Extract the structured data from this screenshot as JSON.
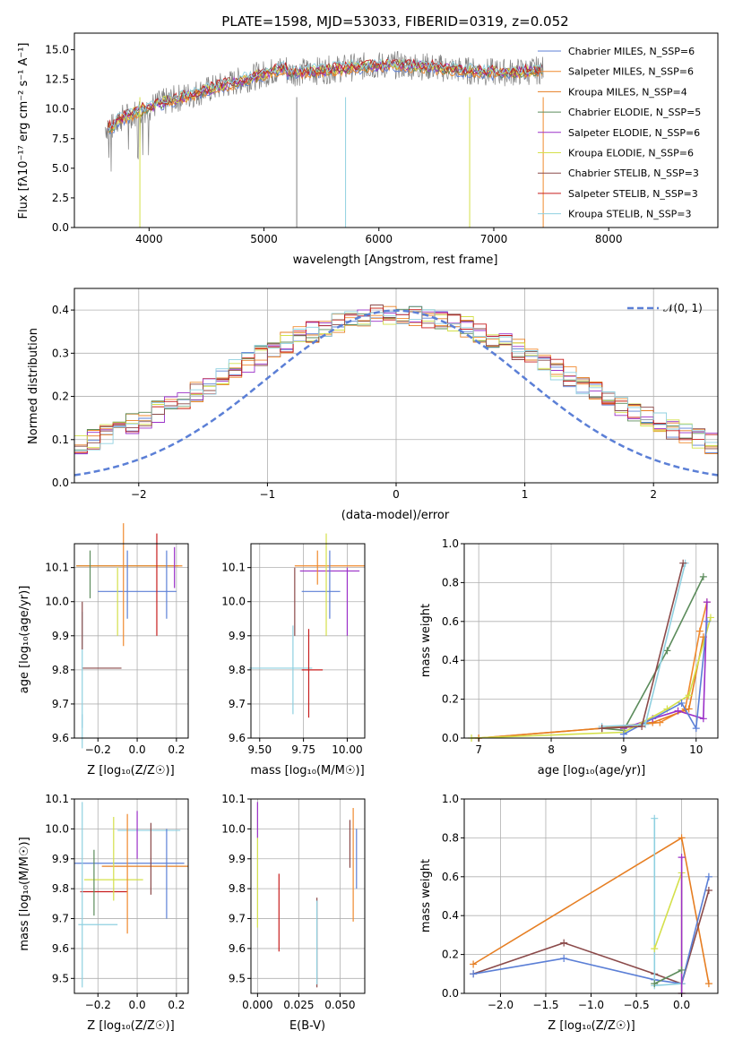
{
  "colors": [
    "#5b7fd6",
    "#f08a2e",
    "#e67e22",
    "#5c8c5c",
    "#9b30c8",
    "#d4e04a",
    "#8b4a4a",
    "#c81e1e",
    "#8fd0e0"
  ],
  "spectrum": {
    "title": "PLATE=1598, MJD=53033, FIBERID=0319, z=0.052",
    "xlabel": "wavelength [Angstrom, rest frame]",
    "ylabel": "Flux [fλ10⁻¹⁷ erg cm⁻² s⁻¹ A⁻¹]",
    "xticks": [
      "4000",
      "5000",
      "6000",
      "7000",
      "8000"
    ],
    "yticks": [
      "0.0",
      "2.5",
      "5.0",
      "7.5",
      "10.0",
      "12.5",
      "15.0"
    ],
    "legend": [
      "Chabrier MILES, N_SSP=6",
      "Salpeter MILES, N_SSP=6",
      "Kroupa MILES, N_SSP=4",
      "Chabrier ELODIE, N_SSP=5",
      "Salpeter ELODIE, N_SSP=6",
      "Kroupa ELODIE, N_SSP=6",
      "Chabrier STELIB, N_SSP=3",
      "Salpeter STELIB, N_SSP=3",
      "Kroupa STELIB, N_SSP=3"
    ]
  },
  "residuals": {
    "xlabel": "(data-model)/error",
    "ylabel": "Normed distribution",
    "xticks": [
      "−2",
      "−1",
      "0",
      "1",
      "2"
    ],
    "yticks": [
      "0.0",
      "0.1",
      "0.2",
      "0.3",
      "0.4"
    ],
    "legend_label": "𝒩(0, 1)"
  },
  "panels": {
    "z_age": {
      "xlabel": "Z [log₁₀(Z/Z☉)]",
      "ylabel": "age  [log₁₀(age/yr)]",
      "xticks": [
        "−0.2",
        "0.0",
        "0.2"
      ],
      "yticks": [
        "9.6",
        "9.7",
        "9.8",
        "9.9",
        "10.0",
        "10.1"
      ]
    },
    "mass_age": {
      "xlabel": "mass [log₁₀(M/M☉)]",
      "xticks": [
        "9.50",
        "9.75",
        "10.00"
      ],
      "yticks": [
        "9.6",
        "9.7",
        "9.8",
        "9.9",
        "10.0",
        "10.1"
      ]
    },
    "age_weight": {
      "xlabel": "age  [log₁₀(age/yr)]",
      "ylabel": "mass weight",
      "xticks": [
        "7",
        "8",
        "9",
        "10"
      ],
      "yticks": [
        "0.0",
        "0.2",
        "0.4",
        "0.6",
        "0.8",
        "1.0"
      ]
    },
    "z_mass": {
      "xlabel": "Z [log₁₀(Z/Z☉)]",
      "ylabel": "mass [log₁₀(M/M☉)]",
      "xticks": [
        "−0.2",
        "0.0",
        "0.2"
      ],
      "yticks": [
        "9.5",
        "9.6",
        "9.7",
        "9.8",
        "9.9",
        "10.0",
        "10.1"
      ]
    },
    "ebv_mass": {
      "xlabel": "E(B-V)",
      "xticks": [
        "0.000",
        "0.025",
        "0.050"
      ],
      "yticks": [
        "9.5",
        "9.6",
        "9.7",
        "9.8",
        "9.9",
        "10.0",
        "10.1"
      ]
    },
    "z_weight": {
      "xlabel": "Z [log₁₀(Z/Z☉)]",
      "ylabel": "mass weight",
      "xticks": [
        "−2.0",
        "−1.5",
        "−1.0",
        "−0.5",
        "0.0"
      ],
      "yticks": [
        "0.0",
        "0.2",
        "0.4",
        "0.6",
        "0.8",
        "1.0"
      ]
    }
  },
  "chart_data": [
    {
      "type": "line",
      "title": "PLATE=1598, MJD=53033, FIBERID=0319, z=0.052",
      "xlabel": "wavelength [Angstrom, rest frame]",
      "ylabel": "Flux",
      "xlim": [
        3350,
        8950
      ],
      "ylim": [
        0,
        16.4
      ],
      "note": "observed spectrum (grey) with 9 model fits"
    },
    {
      "type": "line",
      "xlabel": "(data-model)/error",
      "ylabel": "Normed distribution",
      "xlim": [
        -2.5,
        2.5
      ],
      "ylim": [
        0,
        0.45
      ],
      "series": [
        {
          "name": "𝒩(0, 1)",
          "function": "gaussian",
          "mean": 0,
          "sigma": 1
        }
      ]
    },
    {
      "type": "scatter",
      "xlabel": "Z",
      "ylabel": "age",
      "xlim": [
        -0.32,
        0.26
      ],
      "ylim": [
        9.6,
        10.17
      ],
      "points": [
        {
          "x": -0.28,
          "y": 10.1,
          "xerr": 0.5,
          "yerr": 0.05
        },
        {
          "x": -0.05,
          "y": 10.1,
          "xerr": 0.25,
          "yerr": 0.12
        },
        {
          "x": 0.0,
          "y": 10.03,
          "xerr": 0.2,
          "yerr": 0.1
        },
        {
          "x": -0.18,
          "y": 9.8,
          "xerr": 0.12,
          "yerr": 0.18
        }
      ]
    },
    {
      "type": "scatter",
      "xlabel": "mass",
      "ylabel": "age",
      "xlim": [
        9.45,
        10.1
      ],
      "ylim": [
        9.6,
        10.17
      ],
      "points": [
        {
          "x": 9.9,
          "y": 10.1,
          "xerr": 0.2,
          "yerr": 0.05
        },
        {
          "x": 9.85,
          "y": 10.03,
          "xerr": 0.1,
          "yerr": 0.1
        },
        {
          "x": 9.7,
          "y": 9.8,
          "xerr": 0.2,
          "yerr": 0.18
        }
      ]
    },
    {
      "type": "line",
      "xlabel": "age",
      "ylabel": "mass weight",
      "xlim": [
        6.8,
        10.3
      ],
      "ylim": [
        0,
        1
      ]
    },
    {
      "type": "scatter",
      "xlabel": "Z",
      "ylabel": "mass",
      "xlim": [
        -0.32,
        0.26
      ],
      "ylim": [
        9.45,
        10.1
      ]
    },
    {
      "type": "scatter",
      "xlabel": "E(B-V)",
      "ylabel": "mass",
      "xlim": [
        -0.004,
        0.065
      ],
      "ylim": [
        9.45,
        10.1
      ]
    },
    {
      "type": "line",
      "xlabel": "Z",
      "ylabel": "mass weight",
      "xlim": [
        -2.4,
        0.4
      ],
      "ylim": [
        0,
        1
      ]
    }
  ]
}
